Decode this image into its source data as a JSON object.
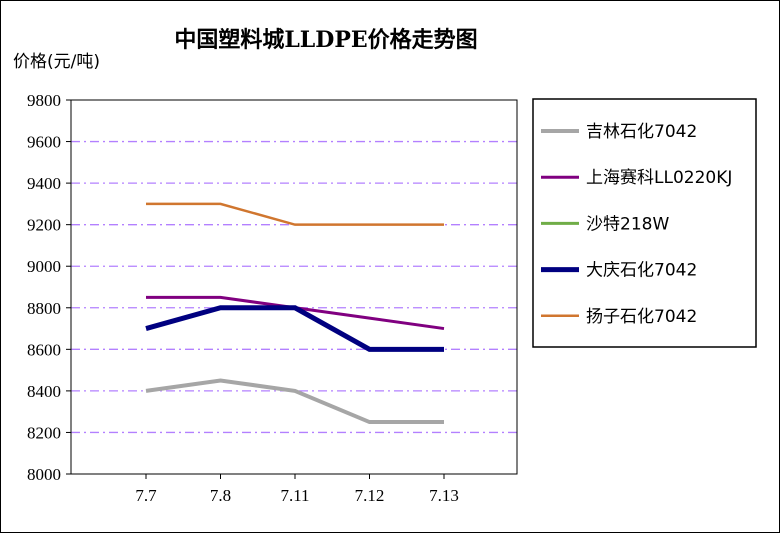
{
  "chart_data": {
    "type": "line",
    "title": "中国塑料城LLDPE价格走势图",
    "ylabel": "价格(元/吨)",
    "xlabel": "",
    "categories": [
      "7.7",
      "7.8",
      "7.11",
      "7.12",
      "7.13"
    ],
    "ylim": [
      8000,
      9800
    ],
    "yticks": [
      8000,
      8200,
      8400,
      8600,
      8800,
      9000,
      9200,
      9400,
      9600,
      9800
    ],
    "grid": true,
    "legend_position": "right",
    "series": [
      {
        "name": "吉林石化7042",
        "color": "#a6a6a6",
        "values": [
          8400,
          8450,
          8400,
          8250,
          8250
        ]
      },
      {
        "name": "上海赛科LL0220KJ",
        "color": "#800080",
        "values": [
          8850,
          8850,
          8800,
          8750,
          8700
        ]
      },
      {
        "name": "沙特218W",
        "color": "#70ad47",
        "values": [
          null,
          null,
          null,
          null,
          null
        ]
      },
      {
        "name": "大庆石化7042",
        "color": "#000080",
        "values": [
          8700,
          8800,
          8800,
          8600,
          8600
        ]
      },
      {
        "name": "扬子石化7042",
        "color": "#d0762f",
        "values": [
          9300,
          9300,
          9200,
          9200,
          9200
        ]
      }
    ]
  }
}
